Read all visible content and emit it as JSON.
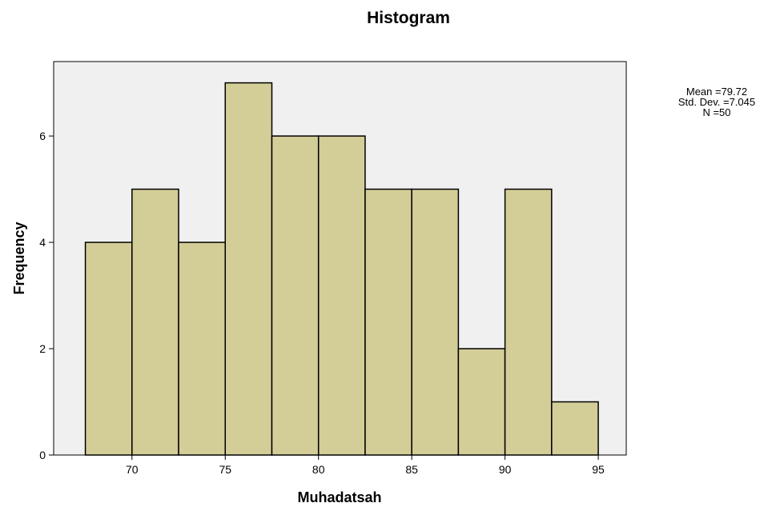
{
  "chart_data": {
    "type": "bar",
    "title": "Histogram",
    "xlabel": "Muhadatsah",
    "ylabel": "Frequency",
    "bins": [
      {
        "start": 67.5,
        "end": 70,
        "count": 4
      },
      {
        "start": 70,
        "end": 72.5,
        "count": 5
      },
      {
        "start": 72.5,
        "end": 75,
        "count": 4
      },
      {
        "start": 75,
        "end": 77.5,
        "count": 7
      },
      {
        "start": 77.5,
        "end": 80,
        "count": 6
      },
      {
        "start": 80,
        "end": 82.5,
        "count": 6
      },
      {
        "start": 82.5,
        "end": 85,
        "count": 5
      },
      {
        "start": 85,
        "end": 87.5,
        "count": 5
      },
      {
        "start": 87.5,
        "end": 90,
        "count": 2
      },
      {
        "start": 90,
        "end": 92.5,
        "count": 5
      },
      {
        "start": 92.5,
        "end": 95,
        "count": 1
      }
    ],
    "xticks": [
      70,
      75,
      80,
      85,
      90,
      95
    ],
    "yticks": [
      0,
      2,
      4,
      6
    ],
    "xlim": [
      65.8,
      96.5
    ],
    "ylim": [
      0,
      7.4
    ],
    "grid": false,
    "colors": {
      "bar_fill": "#d3cd97",
      "bar_edge": "#000000",
      "plot_background": "#f0f0f0"
    }
  },
  "stats": {
    "mean": "Mean =79.72",
    "std_dev": "Std. Dev. =7.045",
    "n": "N =50"
  }
}
